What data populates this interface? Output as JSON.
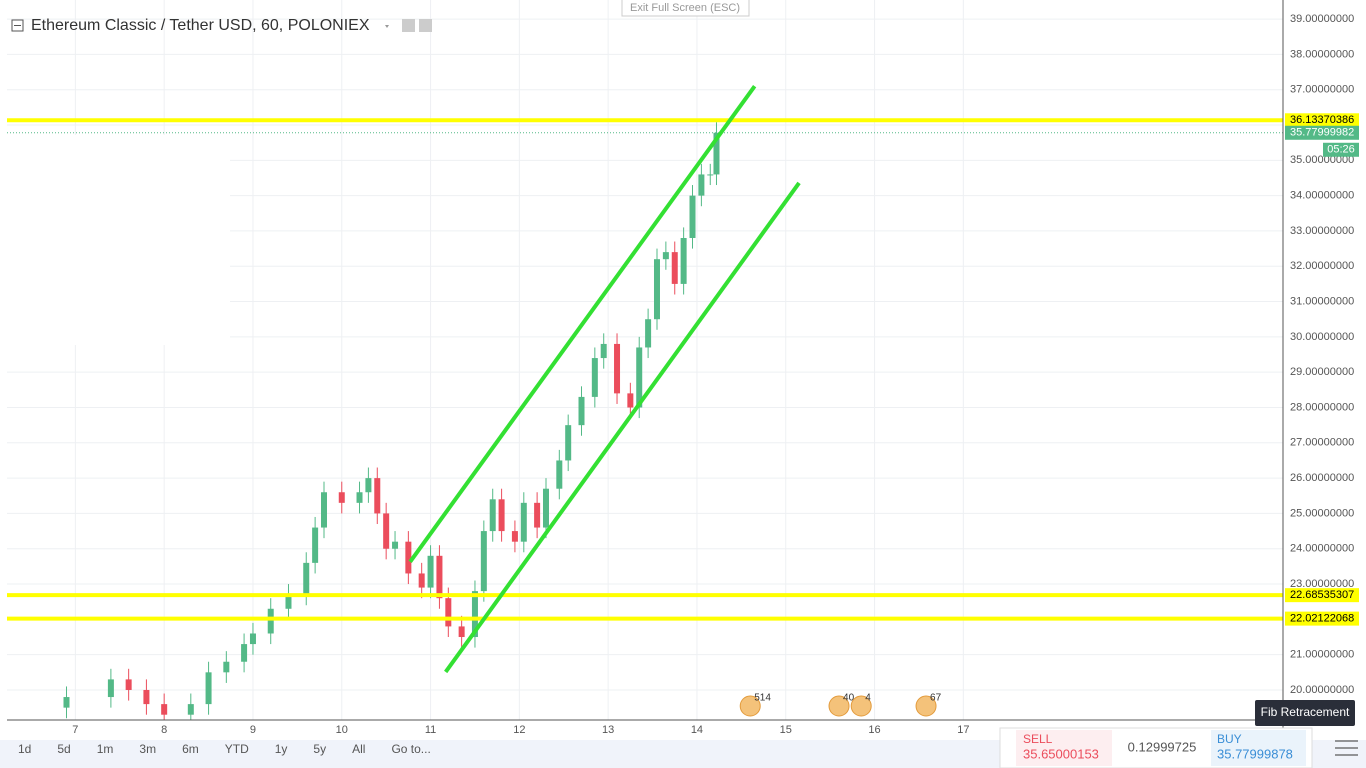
{
  "header": {
    "title": "Ethereum Classic / Tether USD, 60, POLONIEX",
    "exit_fullscreen": "Exit Full Screen (ESC)"
  },
  "chart_data": {
    "type": "candlestick",
    "x": [
      6.9,
      7.4,
      7.6,
      7.8,
      8.0,
      8.3,
      8.5,
      8.7,
      8.9,
      9.0,
      9.2,
      9.4,
      9.6,
      9.7,
      9.8,
      10.0,
      10.2,
      10.3,
      10.4,
      10.5,
      10.6,
      10.75,
      10.9,
      11.0,
      11.1,
      11.2,
      11.35,
      11.5,
      11.6,
      11.7,
      11.8,
      11.95,
      12.05,
      12.2,
      12.3,
      12.45,
      12.55,
      12.7,
      12.85,
      12.95,
      13.1,
      13.25,
      13.35,
      13.45,
      13.55,
      13.65,
      13.75,
      13.85,
      13.95,
      14.05,
      14.15,
      14.22
    ],
    "open": [
      19.5,
      19.8,
      20.3,
      20.0,
      19.6,
      19.3,
      19.6,
      20.5,
      20.8,
      21.3,
      21.6,
      22.3,
      22.7,
      23.6,
      24.6,
      25.6,
      25.3,
      25.6,
      26.0,
      25.0,
      24.0,
      24.2,
      23.3,
      22.9,
      23.8,
      22.6,
      21.8,
      21.5,
      22.8,
      24.5,
      25.4,
      24.5,
      24.2,
      25.3,
      24.6,
      25.7,
      26.5,
      27.5,
      28.3,
      29.4,
      29.8,
      28.4,
      28.0,
      29.7,
      30.5,
      32.2,
      32.4,
      31.5,
      32.8,
      34.0,
      34.6,
      34.6
    ],
    "high": [
      20.1,
      20.6,
      20.6,
      20.3,
      19.9,
      19.9,
      20.8,
      21.1,
      21.6,
      21.9,
      22.6,
      23.0,
      23.9,
      24.9,
      25.9,
      25.9,
      25.9,
      26.3,
      26.3,
      25.3,
      24.5,
      24.5,
      23.6,
      24.1,
      24.1,
      22.9,
      22.1,
      23.1,
      24.8,
      25.7,
      25.7,
      24.8,
      25.6,
      25.6,
      26.0,
      26.8,
      27.8,
      28.6,
      29.7,
      30.1,
      30.1,
      28.7,
      30.0,
      30.8,
      32.5,
      32.7,
      32.7,
      33.1,
      34.3,
      34.9,
      34.9,
      36.08
    ],
    "low": [
      19.2,
      19.5,
      19.7,
      19.3,
      19.0,
      19.0,
      19.3,
      20.2,
      20.5,
      21.0,
      21.3,
      22.0,
      22.4,
      23.3,
      24.3,
      25.0,
      25.0,
      25.3,
      24.7,
      23.7,
      23.7,
      23.0,
      22.6,
      22.6,
      22.3,
      21.5,
      21.2,
      21.2,
      22.5,
      24.2,
      24.2,
      23.9,
      23.9,
      24.3,
      24.3,
      25.4,
      26.2,
      27.2,
      28.0,
      29.1,
      28.1,
      27.7,
      27.7,
      29.4,
      30.2,
      31.9,
      31.2,
      31.2,
      32.5,
      33.7,
      34.3,
      34.3
    ],
    "close": [
      19.8,
      20.3,
      20.0,
      19.6,
      19.3,
      19.6,
      20.5,
      20.8,
      21.3,
      21.6,
      22.3,
      22.7,
      23.6,
      24.6,
      25.6,
      25.3,
      25.6,
      26.0,
      25.0,
      24.0,
      24.2,
      23.3,
      22.9,
      23.8,
      22.6,
      21.8,
      21.5,
      22.8,
      24.5,
      25.4,
      24.5,
      24.2,
      25.3,
      24.6,
      25.7,
      26.5,
      27.5,
      28.3,
      29.4,
      29.8,
      28.4,
      28.0,
      29.7,
      30.5,
      32.2,
      32.4,
      31.5,
      32.8,
      34.0,
      34.6,
      34.6,
      35.78
    ],
    "up_color": "#53b987",
    "down_color": "#eb4d5c",
    "xlim": [
      6.23,
      20.6
    ],
    "ylim": [
      19.15,
      39.54
    ],
    "xticks": [
      7,
      8,
      9,
      10,
      11,
      12,
      13,
      14,
      15,
      16,
      17
    ],
    "yticks": [
      {
        "value": 20,
        "label": "20.00000000"
      },
      {
        "value": 21,
        "label": "21.00000000"
      },
      {
        "value": 22,
        "label": "22.00000000"
      },
      {
        "value": 23,
        "label": "23.00000000"
      },
      {
        "value": 24,
        "label": "24.00000000"
      },
      {
        "value": 25,
        "label": "25.00000000"
      },
      {
        "value": 26,
        "label": "26.00000000"
      },
      {
        "value": 27,
        "label": "27.00000000"
      },
      {
        "value": 28,
        "label": "28.00000000"
      },
      {
        "value": 29,
        "label": "29.00000000"
      },
      {
        "value": 30,
        "label": "30.00000000"
      },
      {
        "value": 31,
        "label": "31.00000000"
      },
      {
        "value": 32,
        "label": "32.00000000"
      },
      {
        "value": 33,
        "label": "33.00000000"
      },
      {
        "value": 34,
        "label": "34.00000000"
      },
      {
        "value": 35,
        "label": "35.00000000"
      },
      {
        "value": 36,
        "label": "36.00000000"
      },
      {
        "value": 37,
        "label": "37.00000000"
      },
      {
        "value": 38,
        "label": "38.00000000"
      },
      {
        "value": 39,
        "label": "39.00000000"
      }
    ],
    "grid": true,
    "horizontal_lines": {
      "values": [
        36.13370386,
        22.68535307,
        22.02122068
      ],
      "color": "#ffff00"
    },
    "current_price": 35.77999982,
    "current_price_color": "#53b987",
    "countdown": "05:26",
    "channel": {
      "color": "#33e033",
      "lines": [
        {
          "x": [
            10.77,
            14.65
          ],
          "y": [
            23.63,
            37.1
          ]
        },
        {
          "x": [
            11.17,
            15.15
          ],
          "y": [
            20.51,
            34.36
          ]
        }
      ]
    },
    "events": [
      {
        "x": 14.6,
        "label": "514"
      },
      {
        "x": 15.6,
        "label": "40"
      },
      {
        "x": 15.85,
        "label": "4"
      },
      {
        "x": 16.58,
        "label": "67"
      }
    ]
  },
  "toolbar": {
    "ranges": [
      "1d",
      "5d",
      "1m",
      "3m",
      "6m",
      "YTD",
      "1y",
      "5y",
      "All",
      "Go to..."
    ]
  },
  "trade_panel": {
    "sell_label": "SELL",
    "sell_price": "35.65000153",
    "spread": "0.12999725",
    "buy_label": "BUY",
    "buy_price": "35.77999878"
  },
  "tooltip": "Fib Retracement"
}
